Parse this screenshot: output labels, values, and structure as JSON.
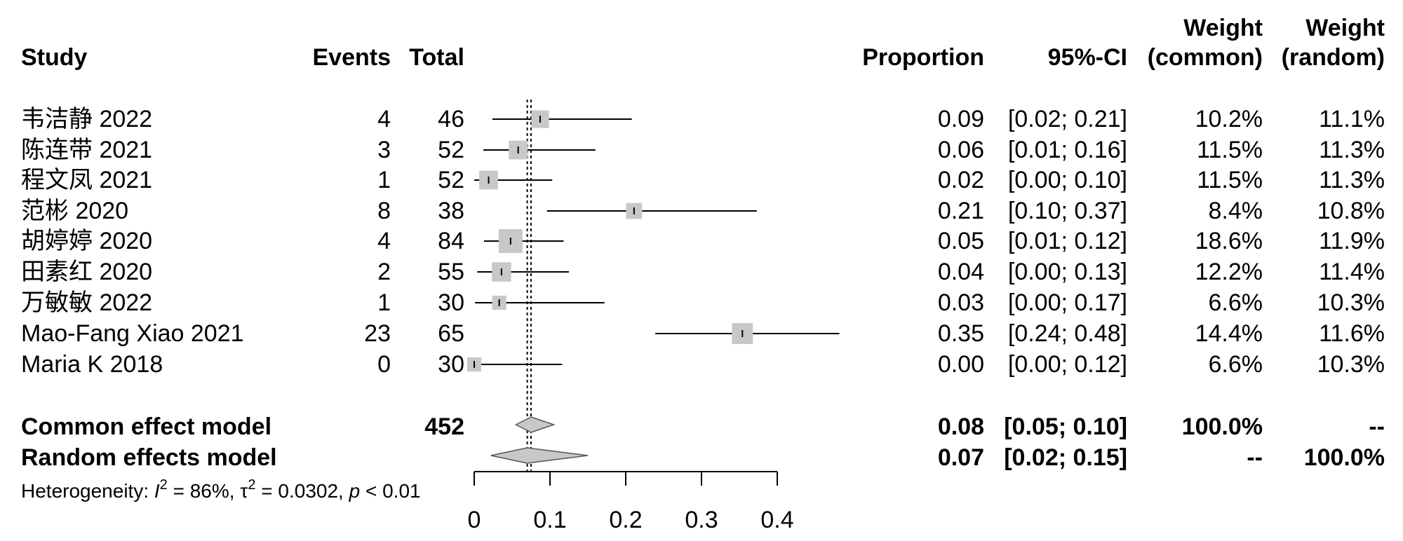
{
  "chart_data": {
    "type": "forest",
    "columns": {
      "study": "Study",
      "events": "Events",
      "total": "Total",
      "proportion": "Proportion",
      "ci": "95%-CI",
      "weight_common_line1": "Weight",
      "weight_common_line2": "(common)",
      "weight_random_line1": "Weight",
      "weight_random_line2": "(random)"
    },
    "studies": [
      {
        "name": "韦洁静 2022",
        "events": "4",
        "total": "46",
        "prop": 0.087,
        "lower": 0.024,
        "upper": 0.208,
        "weight_common": 10.2,
        "prop_label": "0.09",
        "ci_label": "[0.02; 0.21]",
        "wc_label": "10.2%",
        "wr_label": "11.1%"
      },
      {
        "name": "陈连带 2021",
        "events": "3",
        "total": "52",
        "prop": 0.058,
        "lower": 0.012,
        "upper": 0.16,
        "weight_common": 11.5,
        "prop_label": "0.06",
        "ci_label": "[0.01; 0.16]",
        "wc_label": "11.5%",
        "wr_label": "11.3%"
      },
      {
        "name": "程文凤 2021",
        "events": "1",
        "total": "52",
        "prop": 0.019,
        "lower": 0.0,
        "upper": 0.103,
        "weight_common": 11.5,
        "prop_label": "0.02",
        "ci_label": "[0.00; 0.10]",
        "wc_label": "11.5%",
        "wr_label": "11.3%"
      },
      {
        "name": "范彬 2020",
        "events": "8",
        "total": "38",
        "prop": 0.211,
        "lower": 0.096,
        "upper": 0.373,
        "weight_common": 8.4,
        "prop_label": "0.21",
        "ci_label": "[0.10; 0.37]",
        "wc_label": "8.4%",
        "wr_label": "10.8%"
      },
      {
        "name": "胡婷婷 2020",
        "events": "4",
        "total": "84",
        "prop": 0.048,
        "lower": 0.013,
        "upper": 0.118,
        "weight_common": 18.6,
        "prop_label": "0.05",
        "ci_label": "[0.01; 0.12]",
        "wc_label": "18.6%",
        "wr_label": "11.9%"
      },
      {
        "name": "田素红 2020",
        "events": "2",
        "total": "55",
        "prop": 0.036,
        "lower": 0.004,
        "upper": 0.125,
        "weight_common": 12.2,
        "prop_label": "0.04",
        "ci_label": "[0.00; 0.13]",
        "wc_label": "12.2%",
        "wr_label": "11.4%"
      },
      {
        "name": "万敏敏 2022",
        "events": "1",
        "total": "30",
        "prop": 0.033,
        "lower": 0.001,
        "upper": 0.172,
        "weight_common": 6.6,
        "prop_label": "0.03",
        "ci_label": "[0.00; 0.17]",
        "wc_label": "6.6%",
        "wr_label": "10.3%"
      },
      {
        "name": "Mao-Fang Xiao 2021",
        "events": "23",
        "total": "65",
        "prop": 0.354,
        "lower": 0.239,
        "upper": 0.482,
        "weight_common": 14.4,
        "prop_label": "0.35",
        "ci_label": "[0.24; 0.48]",
        "wc_label": "14.4%",
        "wr_label": "11.6%"
      },
      {
        "name": "Maria K 2018",
        "events": "0",
        "total": "30",
        "prop": 0.0,
        "lower": 0.0,
        "upper": 0.116,
        "weight_common": 6.6,
        "prop_label": "0.00",
        "ci_label": "[0.00; 0.12]",
        "wc_label": "6.6%",
        "wr_label": "10.3%"
      }
    ],
    "pooled": [
      {
        "name": "Common effect model",
        "total": "452",
        "est": 0.075,
        "lower": 0.055,
        "upper": 0.105,
        "prop_label": "0.08",
        "ci_label": "[0.05; 0.10]",
        "wc_label": "100.0%",
        "wr_label": "--"
      },
      {
        "name": "Random effects model",
        "total": "",
        "est": 0.07,
        "lower": 0.022,
        "upper": 0.15,
        "prop_label": "0.07",
        "ci_label": "[0.02; 0.15]",
        "wc_label": "--",
        "wr_label": "100.0%"
      }
    ],
    "heterogeneity": {
      "prefix": "Heterogeneity: ",
      "i_symbol": "I",
      "i_sup": "2",
      "i_value": " = 86%, ",
      "tau_symbol": "τ",
      "tau_sup": "2",
      "tau_value": " = 0.0302, ",
      "p_symbol": "p",
      "p_value": " < 0.01"
    },
    "x_axis": {
      "range": [
        0,
        0.4
      ],
      "ticks": [
        0,
        0.1,
        0.2,
        0.3,
        0.4
      ],
      "tick_labels": [
        "0",
        "0.1",
        "0.2",
        "0.3",
        "0.4"
      ]
    },
    "reference_lines": {
      "common": 0.075,
      "random": 0.07
    },
    "colors": {
      "box": "#c8c8c8",
      "diamond": "#c8c8c8",
      "line": "#000000"
    }
  }
}
